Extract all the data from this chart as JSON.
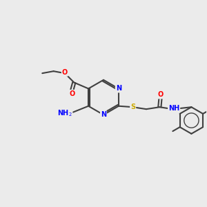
{
  "background_color": "#ebebeb",
  "bond_color": "#404040",
  "bond_width": 1.5,
  "atom_colors": {
    "C": "#404040",
    "N": "#0000ff",
    "O": "#ff0000",
    "S": "#ccaa00",
    "H": "#404040"
  },
  "font_size": 7,
  "title": "",
  "figsize": [
    3.0,
    3.0
  ],
  "dpi": 100
}
